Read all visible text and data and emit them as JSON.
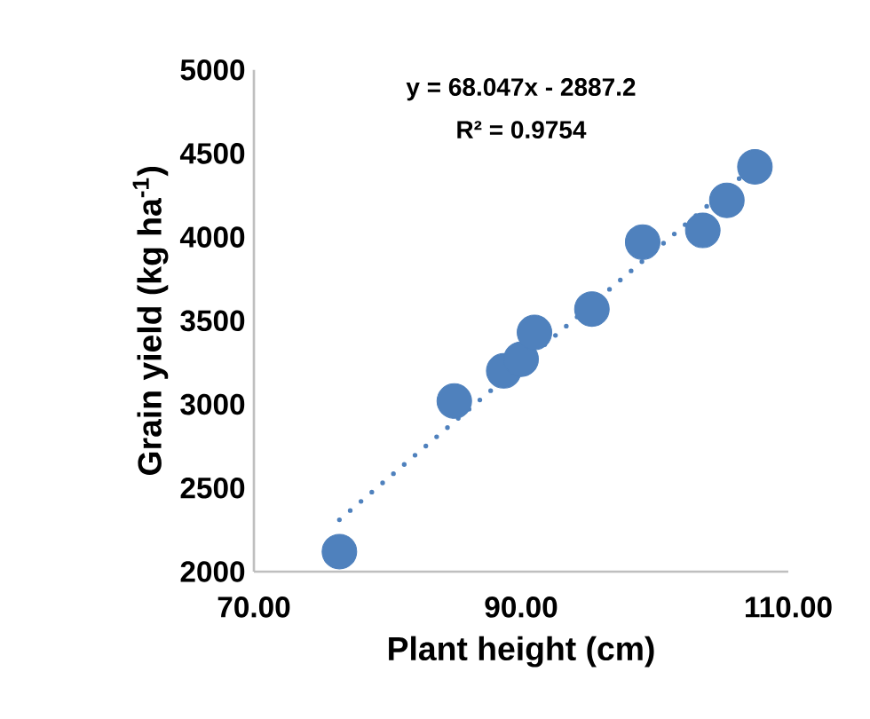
{
  "chart_data": {
    "type": "scatter",
    "xlabel": "Plant height (cm)",
    "ylabel": "Grain yield (kg  ha$^{-1}$)",
    "annotations": [
      "y = 68.047x - 2887.2",
      "R² = 0.9754"
    ],
    "xlim": [
      70,
      110
    ],
    "xticks": [
      {
        "value": 70,
        "label": "70.00"
      },
      {
        "value": 90,
        "label": "90.00"
      },
      {
        "value": 110,
        "label": "110.00"
      }
    ],
    "ylim": [
      2000,
      5000
    ],
    "yticks": [
      2000,
      2500,
      3000,
      3500,
      4000,
      4500,
      5000
    ],
    "grid": false,
    "legend": false,
    "series": [
      {
        "marker": "circle",
        "color": "#4f81bd",
        "x": [
          76.4,
          85.0,
          88.7,
          90.0,
          91.0,
          95.3,
          99.1,
          103.6,
          105.4,
          107.5
        ],
        "values": [
          2120,
          3020,
          3200,
          3270,
          3430,
          3570,
          3970,
          4040,
          4220,
          4420
        ]
      },
      {
        "type": "line",
        "color": "#4f81bd",
        "line_style": "dotted",
        "marker": "none",
        "x": [
          76.4,
          107.5
        ],
        "values": [
          2310,
          4430
        ]
      }
    ]
  }
}
